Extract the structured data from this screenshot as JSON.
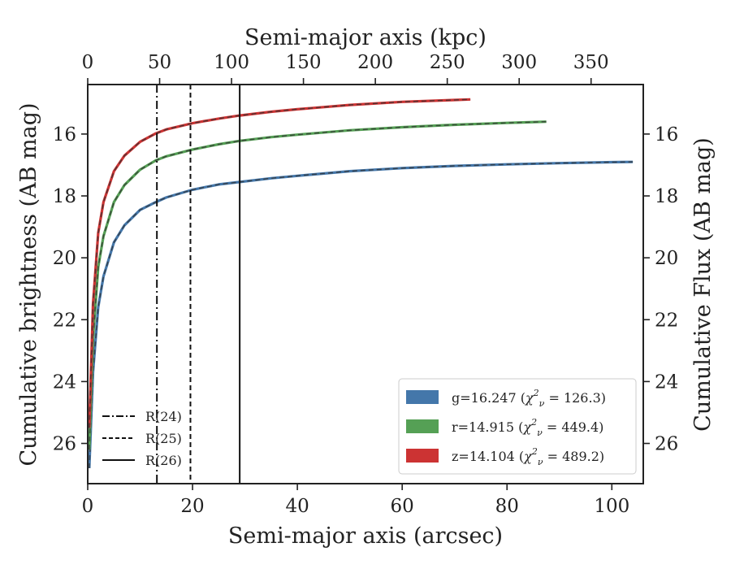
{
  "chart_data": {
    "type": "line",
    "xlabel": "Semi-major axis (arcsec)",
    "xlabel_top": "Semi-major axis (kpc)",
    "ylabel": "Cumulative brightness (AB mag)",
    "ylabel_right": "Cumulative Flux (AB mag)",
    "xlim": [
      0,
      106
    ],
    "xlim_top": [
      0,
      386.3
    ],
    "ylim": [
      27.3,
      14.4
    ],
    "y_inverted": true,
    "x_ticks": [
      0,
      20,
      40,
      60,
      80,
      100
    ],
    "x_top_ticks": [
      0,
      50,
      100,
      150,
      200,
      250,
      300,
      350
    ],
    "y_ticks": [
      16,
      18,
      20,
      22,
      24,
      26
    ],
    "y_right_ticks": [
      16,
      18,
      20,
      22,
      24,
      26
    ],
    "grid": false,
    "series": [
      {
        "band": "g",
        "label_prefix": "g=16.247 (",
        "label_chi": "126.3",
        "color": "#4477aa",
        "x": [
          0.3,
          1,
          2,
          3,
          5,
          7,
          10,
          13,
          15,
          20,
          25,
          29,
          35,
          40,
          50,
          60,
          70,
          80,
          90,
          100,
          104
        ],
        "y": [
          26.8,
          23.7,
          21.6,
          20.6,
          19.5,
          18.95,
          18.45,
          18.2,
          18.05,
          17.8,
          17.63,
          17.55,
          17.43,
          17.35,
          17.2,
          17.1,
          17.03,
          16.98,
          16.94,
          16.91,
          16.9
        ]
      },
      {
        "band": "r",
        "label_prefix": "r=14.915 (",
        "label_chi": "449.4",
        "color": "#55a055",
        "x": [
          0.3,
          1,
          2,
          3,
          5,
          7,
          10,
          13,
          15,
          20,
          25,
          29,
          35,
          40,
          50,
          60,
          70,
          80,
          87.5
        ],
        "y": [
          26.2,
          22.6,
          20.3,
          19.3,
          18.2,
          17.65,
          17.15,
          16.85,
          16.72,
          16.5,
          16.33,
          16.22,
          16.1,
          16.02,
          15.88,
          15.78,
          15.7,
          15.64,
          15.6
        ]
      },
      {
        "band": "z",
        "label_prefix": "z=14.104 (",
        "label_chi": "489.2",
        "color": "#cc3333",
        "x": [
          0.3,
          1,
          2,
          3,
          5,
          7,
          10,
          13,
          15,
          20,
          25,
          29,
          35,
          40,
          50,
          60,
          70,
          73
        ],
        "y": [
          25.5,
          21.5,
          19.2,
          18.2,
          17.2,
          16.7,
          16.25,
          15.98,
          15.85,
          15.65,
          15.5,
          15.4,
          15.28,
          15.2,
          15.06,
          14.96,
          14.9,
          14.88
        ]
      }
    ],
    "vlines": [
      {
        "label": "R(24)",
        "x": 13.2,
        "style": "dashdot"
      },
      {
        "label": "R(25)",
        "x": 19.6,
        "style": "dashed"
      },
      {
        "label": "R(26)",
        "x": 29.0,
        "style": "solid"
      }
    ],
    "legend_position": "lower right",
    "vline_legend_position": "lower left",
    "legend_chi_symbol": "χ",
    "legend_chi_subscript": "ν",
    "legend_chi_superscript": "2",
    "legend_equals": " = ",
    "legend_close": ")"
  }
}
